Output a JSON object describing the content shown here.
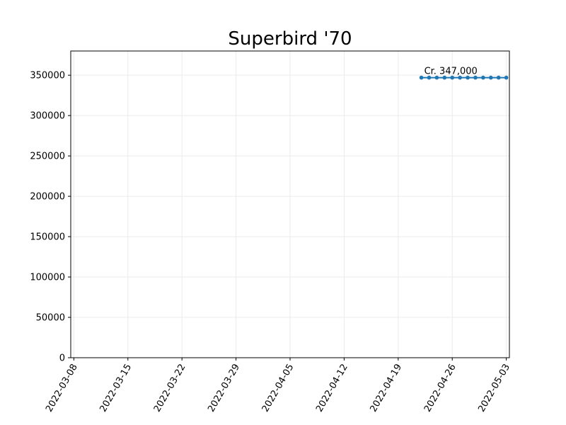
{
  "chart_data": {
    "type": "line",
    "title": "Superbird '70",
    "xlabel": "",
    "ylabel": "",
    "x_type": "date",
    "xlim": [
      "2022-03-08",
      "2022-05-03"
    ],
    "ylim": [
      0,
      380000
    ],
    "x_ticks": [
      "2022-03-08",
      "2022-03-15",
      "2022-03-22",
      "2022-03-29",
      "2022-04-05",
      "2022-04-12",
      "2022-04-19",
      "2022-04-26",
      "2022-05-03"
    ],
    "y_ticks": [
      0,
      50000,
      100000,
      150000,
      200000,
      250000,
      300000,
      350000
    ],
    "grid": true,
    "legend": "none",
    "colors": {
      "series": "#1f77b4",
      "grid": "#ebebeb",
      "axis": "#000000"
    },
    "series": [
      {
        "x": [
          "2022-04-22",
          "2022-04-23",
          "2022-04-24",
          "2022-04-25",
          "2022-04-26",
          "2022-04-27",
          "2022-04-28",
          "2022-04-29",
          "2022-04-30",
          "2022-05-01",
          "2022-05-02",
          "2022-05-03"
        ],
        "y": [
          347000,
          347000,
          347000,
          347000,
          347000,
          347000,
          347000,
          347000,
          347000,
          347000,
          347000,
          347000
        ]
      }
    ],
    "annotations": [
      {
        "text": "Cr. 347,000",
        "x": "2022-04-22",
        "y": 347000
      }
    ]
  }
}
